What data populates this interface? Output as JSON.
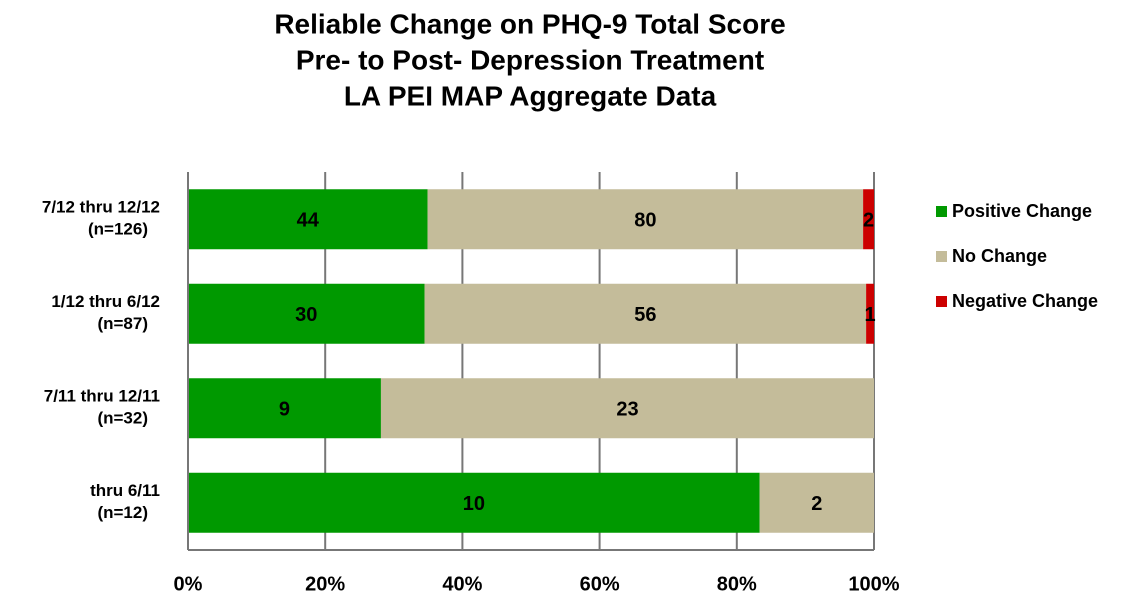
{
  "chart_data": {
    "type": "bar",
    "orientation": "horizontal",
    "stacking": "percent",
    "title": [
      "Reliable Change on PHQ-9 Total Score",
      "Pre- to Post- Depression Treatment",
      "LA PEI MAP Aggregate Data"
    ],
    "categories": [
      [
        "7/12 thru 12/12",
        "(n=126)"
      ],
      [
        "1/12 thru 6/12",
        "(n=87)"
      ],
      [
        "7/11 thru 12/11",
        "(n=32)"
      ],
      [
        "thru 6/11",
        "(n=12)"
      ]
    ],
    "series": [
      {
        "name": "Positive Change",
        "color": "#009900",
        "values": [
          44,
          30,
          9,
          10
        ]
      },
      {
        "name": "No Change",
        "color": "#c4bc9a",
        "values": [
          80,
          56,
          23,
          2
        ]
      },
      {
        "name": "Negative Change",
        "color": "#cc0000",
        "values": [
          2,
          1,
          null,
          null
        ]
      }
    ],
    "xlim": [
      0,
      100
    ],
    "xticks": [
      {
        "value": 0,
        "label": "0%"
      },
      {
        "value": 20,
        "label": "20%"
      },
      {
        "value": 40,
        "label": "40%"
      },
      {
        "value": 60,
        "label": "60%"
      },
      {
        "value": 80,
        "label": "80%"
      },
      {
        "value": 100,
        "label": "100%"
      }
    ],
    "grid": true,
    "legend": "right"
  }
}
